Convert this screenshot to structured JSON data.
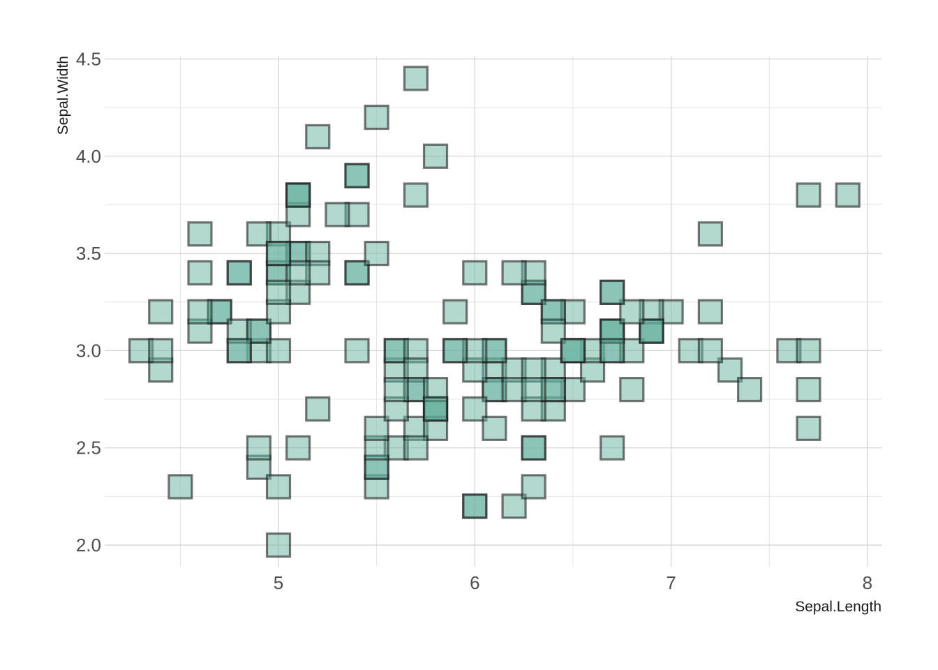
{
  "chart_data": {
    "type": "scatter",
    "xlabel": "Sepal.Length",
    "ylabel": "Sepal.Width",
    "xlim": [
      4.3,
      7.9
    ],
    "ylim": [
      2.0,
      4.4
    ],
    "x_ticks": [
      5,
      6,
      7,
      8
    ],
    "y_ticks": [
      2.0,
      2.5,
      3.0,
      3.5,
      4.0,
      4.5
    ],
    "x_tick_labels": [
      "5",
      "6",
      "7",
      "8"
    ],
    "y_tick_labels": [
      "2.0",
      "2.5",
      "3.0",
      "3.5",
      "4.0",
      "4.5"
    ],
    "grid": true,
    "legend": "none",
    "marker": "square",
    "fill_color": "#66b2a0",
    "fill_opacity": 0.5,
    "stroke_color": "#1f1f1f",
    "stroke_opacity": 0.6,
    "series": [
      {
        "points": [
          [
            5.1,
            3.5
          ],
          [
            4.9,
            3.0
          ],
          [
            4.7,
            3.2
          ],
          [
            4.6,
            3.1
          ],
          [
            5.0,
            3.6
          ],
          [
            5.4,
            3.9
          ],
          [
            4.6,
            3.4
          ],
          [
            5.0,
            3.4
          ],
          [
            4.4,
            2.9
          ],
          [
            4.9,
            3.1
          ],
          [
            5.4,
            3.7
          ],
          [
            4.8,
            3.4
          ],
          [
            4.8,
            3.0
          ],
          [
            4.3,
            3.0
          ],
          [
            5.8,
            4.0
          ],
          [
            5.7,
            4.4
          ],
          [
            5.4,
            3.9
          ],
          [
            5.1,
            3.5
          ],
          [
            5.7,
            3.8
          ],
          [
            5.1,
            3.8
          ],
          [
            5.4,
            3.4
          ],
          [
            5.1,
            3.7
          ],
          [
            4.6,
            3.6
          ],
          [
            5.1,
            3.3
          ],
          [
            4.8,
            3.4
          ],
          [
            5.0,
            3.0
          ],
          [
            5.0,
            3.4
          ],
          [
            5.2,
            3.5
          ],
          [
            5.2,
            3.4
          ],
          [
            4.7,
            3.2
          ],
          [
            4.8,
            3.1
          ],
          [
            5.4,
            3.4
          ],
          [
            5.2,
            4.1
          ],
          [
            5.5,
            4.2
          ],
          [
            4.9,
            3.1
          ],
          [
            5.0,
            3.2
          ],
          [
            5.5,
            3.5
          ],
          [
            4.9,
            3.6
          ],
          [
            4.4,
            3.0
          ],
          [
            5.1,
            3.4
          ],
          [
            5.0,
            3.5
          ],
          [
            4.5,
            2.3
          ],
          [
            4.4,
            3.2
          ],
          [
            5.0,
            3.5
          ],
          [
            5.1,
            3.8
          ],
          [
            4.8,
            3.0
          ],
          [
            5.1,
            3.8
          ],
          [
            4.6,
            3.2
          ],
          [
            5.3,
            3.7
          ],
          [
            5.0,
            3.3
          ],
          [
            7.0,
            3.2
          ],
          [
            6.4,
            3.2
          ],
          [
            6.9,
            3.1
          ],
          [
            5.5,
            2.3
          ],
          [
            6.5,
            2.8
          ],
          [
            5.7,
            2.8
          ],
          [
            6.3,
            3.3
          ],
          [
            4.9,
            2.4
          ],
          [
            6.6,
            2.9
          ],
          [
            5.2,
            2.7
          ],
          [
            5.0,
            2.0
          ],
          [
            5.9,
            3.0
          ],
          [
            6.0,
            2.2
          ],
          [
            6.1,
            2.9
          ],
          [
            5.6,
            2.9
          ],
          [
            6.7,
            3.1
          ],
          [
            5.6,
            3.0
          ],
          [
            5.8,
            2.7
          ],
          [
            6.2,
            2.2
          ],
          [
            5.6,
            2.5
          ],
          [
            5.9,
            3.2
          ],
          [
            6.1,
            2.8
          ],
          [
            6.3,
            2.5
          ],
          [
            6.1,
            2.8
          ],
          [
            6.4,
            2.9
          ],
          [
            6.6,
            3.0
          ],
          [
            6.8,
            2.8
          ],
          [
            6.7,
            3.0
          ],
          [
            6.0,
            2.9
          ],
          [
            5.7,
            2.6
          ],
          [
            5.5,
            2.4
          ],
          [
            5.5,
            2.4
          ],
          [
            5.8,
            2.7
          ],
          [
            6.0,
            2.7
          ],
          [
            5.4,
            3.0
          ],
          [
            6.0,
            3.4
          ],
          [
            6.7,
            3.1
          ],
          [
            6.3,
            2.3
          ],
          [
            5.6,
            3.0
          ],
          [
            5.5,
            2.5
          ],
          [
            5.5,
            2.6
          ],
          [
            6.1,
            3.0
          ],
          [
            5.8,
            2.6
          ],
          [
            5.0,
            2.3
          ],
          [
            5.6,
            2.7
          ],
          [
            5.7,
            3.0
          ],
          [
            5.7,
            2.9
          ],
          [
            6.2,
            2.9
          ],
          [
            5.1,
            2.5
          ],
          [
            5.7,
            2.8
          ],
          [
            6.3,
            3.3
          ],
          [
            5.8,
            2.7
          ],
          [
            7.1,
            3.0
          ],
          [
            6.3,
            2.9
          ],
          [
            6.5,
            3.0
          ],
          [
            7.6,
            3.0
          ],
          [
            4.9,
            2.5
          ],
          [
            7.3,
            2.9
          ],
          [
            6.7,
            2.5
          ],
          [
            7.2,
            3.6
          ],
          [
            6.5,
            3.2
          ],
          [
            6.4,
            2.7
          ],
          [
            6.8,
            3.0
          ],
          [
            5.7,
            2.5
          ],
          [
            5.8,
            2.8
          ],
          [
            6.4,
            3.2
          ],
          [
            6.5,
            3.0
          ],
          [
            7.7,
            3.8
          ],
          [
            7.7,
            2.6
          ],
          [
            6.0,
            2.2
          ],
          [
            6.9,
            3.2
          ],
          [
            5.6,
            2.8
          ],
          [
            7.7,
            2.8
          ],
          [
            6.3,
            2.7
          ],
          [
            6.7,
            3.3
          ],
          [
            7.2,
            3.2
          ],
          [
            6.2,
            2.8
          ],
          [
            6.1,
            3.0
          ],
          [
            6.4,
            2.8
          ],
          [
            7.2,
            3.0
          ],
          [
            7.4,
            2.8
          ],
          [
            7.9,
            3.8
          ],
          [
            6.4,
            2.8
          ],
          [
            6.3,
            2.8
          ],
          [
            6.1,
            2.6
          ],
          [
            7.7,
            3.0
          ],
          [
            6.3,
            3.4
          ],
          [
            6.4,
            3.1
          ],
          [
            6.0,
            3.0
          ],
          [
            6.9,
            3.1
          ],
          [
            6.7,
            3.1
          ],
          [
            6.9,
            3.1
          ],
          [
            5.8,
            2.7
          ],
          [
            6.8,
            3.2
          ],
          [
            6.7,
            3.3
          ],
          [
            6.7,
            3.0
          ],
          [
            6.3,
            2.5
          ],
          [
            6.5,
            3.0
          ],
          [
            6.2,
            3.4
          ],
          [
            5.9,
            3.0
          ]
        ]
      }
    ]
  }
}
